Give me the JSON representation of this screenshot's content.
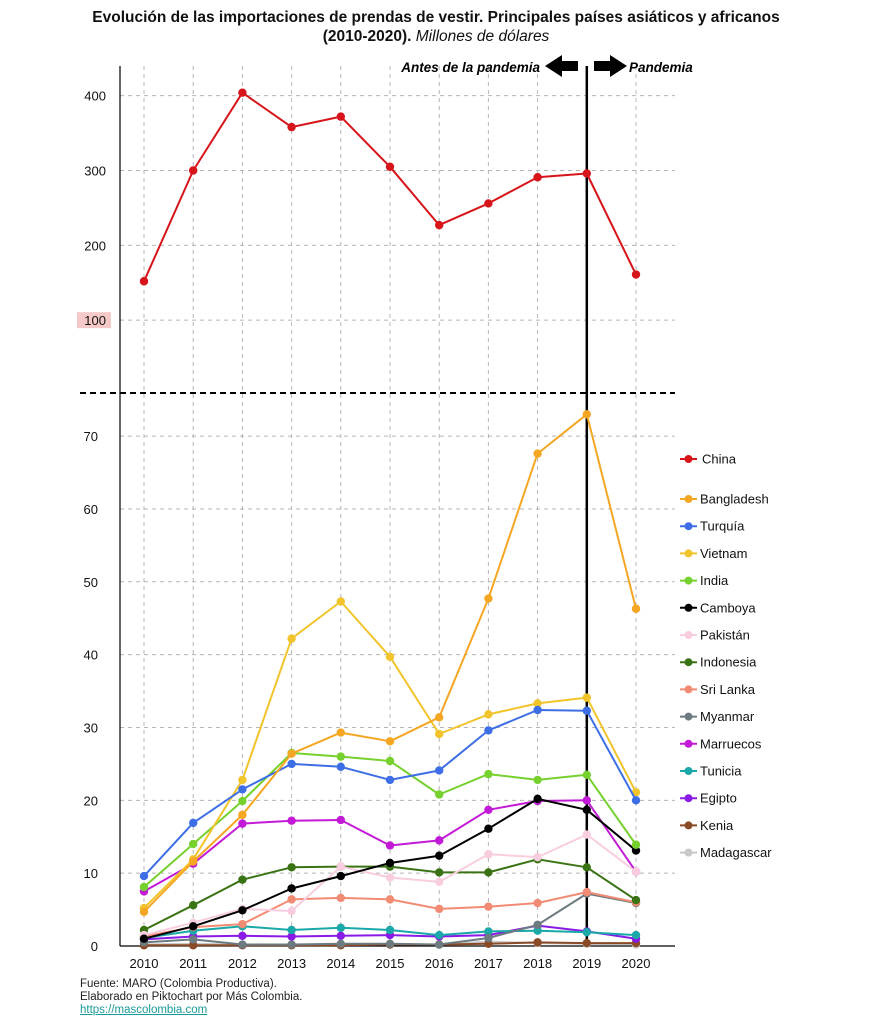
{
  "title": {
    "main": "Evolución de las importaciones de prendas de vestir. Principales países asiáticos y africanos",
    "line2": "(2010-2020).",
    "unit": "Millones de dólares"
  },
  "annotations": {
    "before": "Antes de la pandemia",
    "after": "Pandemia"
  },
  "source": {
    "line1": "Fuente: MARO (Colombia Productiva).",
    "line2": "Elaborado en Piktochart por Más Colombia.",
    "link": "https://mascolombia.com"
  },
  "chart_data": {
    "type": "line",
    "x": [
      2010,
      2011,
      2012,
      2013,
      2014,
      2015,
      2016,
      2017,
      2018,
      2019,
      2020
    ],
    "x_tick_labels": [
      "2010",
      "2011",
      "2012",
      "2013",
      "2014",
      "2015",
      "2016",
      "2017",
      "2018",
      "2019",
      "2020"
    ],
    "y_upper_ticks": [
      100,
      200,
      300,
      400
    ],
    "y_upper_tick_labels": [
      "100",
      "200",
      "300",
      "400"
    ],
    "y_lower_ticks": [
      0,
      10,
      20,
      30,
      40,
      50,
      60,
      70
    ],
    "y_lower_tick_labels": [
      "0",
      "10",
      "20",
      "30",
      "40",
      "50",
      "60",
      "70"
    ],
    "upper_panel_ylim": [
      0,
      430
    ],
    "lower_panel_ylim": [
      0,
      76
    ],
    "split_axis": true,
    "grid": true,
    "legend_position": "right",
    "marker_year": 2019,
    "series": [
      {
        "name": "China",
        "color": "#d7141a",
        "panel": "upper",
        "values": [
          152,
          300,
          404,
          358,
          372,
          305,
          227,
          256,
          291,
          296,
          161
        ]
      },
      {
        "name": "Bangladesh",
        "color": "#f5a623",
        "panel": "lower",
        "values": [
          4.7,
          11.6,
          18.0,
          26.4,
          29.3,
          28.1,
          31.4,
          47.7,
          67.6,
          73.0,
          46.3
        ]
      },
      {
        "name": "Turquía",
        "color": "#3d6ee6",
        "panel": "lower",
        "values": [
          9.6,
          16.9,
          21.5,
          25.0,
          24.6,
          22.8,
          24.1,
          29.6,
          32.4,
          32.3,
          20.0
        ]
      },
      {
        "name": "Vietnam",
        "color": "#f2c42b",
        "panel": "lower",
        "values": [
          5.2,
          11.9,
          22.8,
          42.2,
          47.3,
          39.7,
          29.1,
          31.8,
          33.3,
          34.1,
          21.1
        ]
      },
      {
        "name": "India",
        "color": "#76d12e",
        "panel": "lower",
        "values": [
          8.1,
          14.0,
          19.9,
          26.5,
          26.0,
          25.4,
          20.8,
          23.6,
          22.8,
          23.5,
          13.9
        ]
      },
      {
        "name": "Camboya",
        "color": "#000000",
        "panel": "lower",
        "values": [
          1.0,
          2.7,
          4.9,
          7.9,
          9.6,
          11.4,
          12.4,
          16.1,
          20.2,
          18.7,
          13.1
        ]
      },
      {
        "name": "Pakistán",
        "color": "#f9cde0",
        "panel": "lower",
        "values": [
          1.5,
          3.2,
          5.1,
          4.8,
          10.9,
          9.4,
          8.8,
          12.6,
          12.2,
          15.3,
          10.2
        ]
      },
      {
        "name": "Indonesia",
        "color": "#3a7314",
        "panel": "lower",
        "values": [
          2.2,
          5.6,
          9.1,
          10.8,
          10.9,
          10.9,
          10.1,
          10.1,
          11.9,
          10.8,
          6.3
        ]
      },
      {
        "name": "Sri Lanka",
        "color": "#f28b74",
        "panel": "lower",
        "values": [
          1.3,
          2.6,
          3.0,
          6.4,
          6.6,
          6.4,
          5.1,
          5.4,
          5.9,
          7.4,
          6.0
        ]
      },
      {
        "name": "Myanmar",
        "color": "#6d7b80",
        "panel": "lower",
        "values": [
          0.5,
          0.9,
          0.2,
          0.2,
          0.3,
          0.3,
          0.2,
          1.1,
          2.9,
          7.2,
          5.9
        ]
      },
      {
        "name": "Marruecos",
        "color": "#c21ad6",
        "panel": "lower",
        "values": [
          7.5,
          11.3,
          16.8,
          17.2,
          17.3,
          13.8,
          14.5,
          18.7,
          19.9,
          20.0,
          10.2
        ]
      },
      {
        "name": "Tunicia",
        "color": "#1aa8a8",
        "panel": "lower",
        "values": [
          1.1,
          2.1,
          2.7,
          2.2,
          2.5,
          2.2,
          1.5,
          2.0,
          2.1,
          1.9,
          1.5
        ]
      },
      {
        "name": "Egipto",
        "color": "#8a1ae6",
        "panel": "lower",
        "values": [
          0.9,
          1.3,
          1.4,
          1.3,
          1.4,
          1.5,
          1.3,
          1.5,
          2.8,
          2.0,
          1.0
        ]
      },
      {
        "name": "Kenia",
        "color": "#8b4a26",
        "panel": "lower",
        "values": [
          0.1,
          0.1,
          0.1,
          0.1,
          0.1,
          0.2,
          0.2,
          0.3,
          0.5,
          0.4,
          0.4
        ]
      },
      {
        "name": "Madagascar",
        "color": "#c8c8c8",
        "panel": "lower",
        "values": [
          0.2,
          0.3,
          0.2,
          0.2,
          0.2,
          0.2,
          0.2,
          0.6,
          0.4,
          0.3,
          0.2
        ]
      }
    ]
  }
}
